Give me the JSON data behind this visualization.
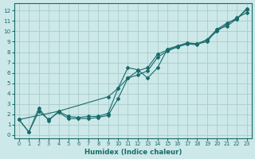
{
  "xlabel": "Humidex (Indice chaleur)",
  "bg_color": "#cce8e8",
  "grid_color": "#aacccc",
  "line_color": "#1a6b6b",
  "x_ticks": [
    0,
    1,
    2,
    3,
    4,
    5,
    6,
    7,
    8,
    9,
    10,
    11,
    12,
    13,
    14,
    15,
    16,
    17,
    18,
    19,
    20,
    21,
    22,
    23
  ],
  "y_ticks": [
    0,
    1,
    2,
    3,
    4,
    5,
    6,
    7,
    8,
    9,
    10,
    11,
    12
  ],
  "xlim": [
    -0.5,
    23.5
  ],
  "ylim": [
    -0.3,
    12.7
  ],
  "series": [
    {
      "x": [
        0,
        1,
        2,
        3,
        4,
        5,
        6,
        7,
        8,
        9,
        10,
        11,
        12,
        13,
        14,
        15,
        16,
        17,
        18,
        19,
        20,
        21,
        22,
        23
      ],
      "y": [
        1.5,
        0.3,
        2.6,
        1.4,
        2.3,
        1.8,
        1.7,
        1.8,
        1.8,
        2.1,
        4.5,
        6.5,
        6.3,
        5.5,
        6.5,
        8.3,
        8.6,
        8.9,
        8.8,
        9.0,
        10.2,
        10.8,
        11.2,
        12.2
      ]
    },
    {
      "x": [
        0,
        4,
        9,
        10,
        11,
        12,
        13,
        14,
        15,
        16,
        17,
        18,
        19,
        20,
        21,
        22,
        23
      ],
      "y": [
        1.5,
        2.3,
        3.7,
        4.5,
        5.5,
        6.2,
        6.5,
        7.8,
        8.2,
        8.5,
        8.8,
        8.8,
        9.2,
        10.2,
        10.5,
        11.2,
        12.1
      ]
    },
    {
      "x": [
        0,
        1,
        2,
        3,
        4,
        5,
        6,
        7,
        8,
        9,
        10,
        11,
        12,
        13,
        14,
        15,
        16,
        17,
        18,
        19,
        20,
        21,
        22,
        23
      ],
      "y": [
        1.5,
        0.3,
        2.3,
        1.5,
        2.2,
        1.6,
        1.6,
        1.6,
        1.7,
        1.9,
        3.5,
        5.5,
        5.8,
        6.2,
        7.5,
        8.1,
        8.5,
        8.8,
        8.7,
        9.2,
        10.0,
        10.7,
        11.3,
        11.8
      ]
    }
  ]
}
